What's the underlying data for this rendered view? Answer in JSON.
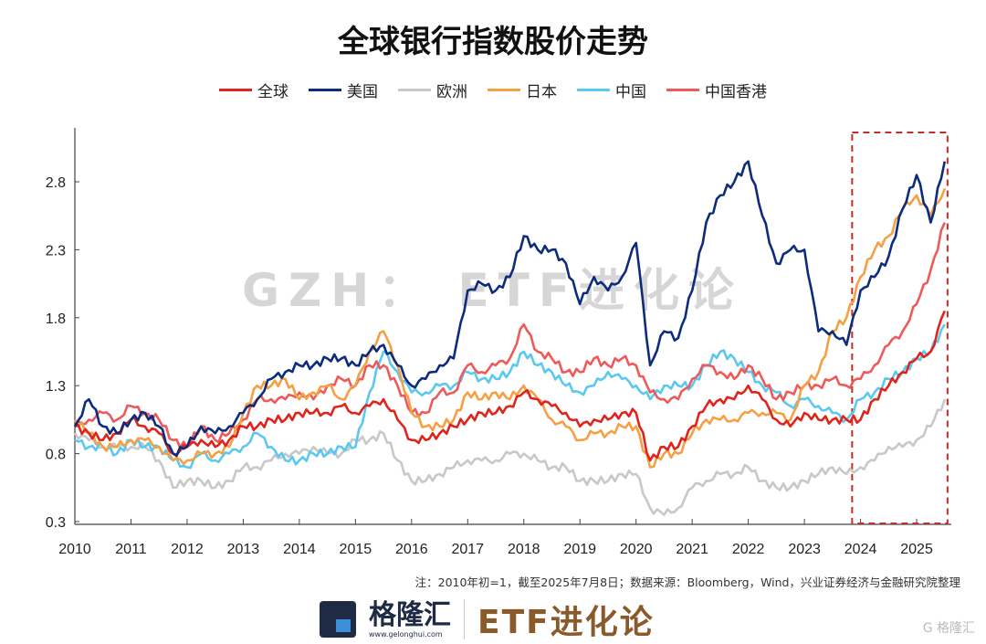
{
  "chart_data": {
    "type": "line",
    "title": "全球银行指数股价走势",
    "xlabel": "",
    "ylabel": "",
    "xlim": [
      2010,
      2025.55
    ],
    "ylim": [
      0.3,
      3.1
    ],
    "yticks": [
      0.3,
      0.8,
      1.3,
      1.8,
      2.3,
      2.8
    ],
    "ytick_labels": [
      "0.3",
      "0.8",
      "1.3",
      "1.8",
      "2.3",
      "2.8"
    ],
    "xtick_labels": [
      "2010",
      "2011",
      "2012",
      "2013",
      "2014",
      "2015",
      "2016",
      "2017",
      "2018",
      "2019",
      "2020",
      "2021",
      "2022",
      "2023",
      "2024",
      "2025"
    ],
    "grid": false,
    "legend_position": "top",
    "highlight_region": {
      "x": [
        2023.85,
        2025.55
      ],
      "style": "red dashed box"
    },
    "x_step_note": "quarterly from 2010.0",
    "series": [
      {
        "name": "全球",
        "color": "#e0231b",
        "values": [
          1.0,
          0.95,
          0.9,
          0.95,
          1.05,
          1.0,
          0.95,
          0.8,
          0.85,
          0.9,
          0.85,
          0.9,
          1.0,
          1.0,
          1.05,
          1.05,
          1.1,
          1.1,
          1.1,
          1.15,
          1.1,
          1.15,
          1.2,
          1.05,
          0.9,
          0.9,
          0.95,
          1.0,
          1.05,
          1.1,
          1.1,
          1.15,
          1.25,
          1.2,
          1.15,
          1.1,
          1.0,
          1.05,
          1.05,
          1.1,
          1.1,
          0.75,
          0.85,
          0.85,
          1.0,
          1.15,
          1.2,
          1.2,
          1.3,
          1.2,
          1.05,
          1.0,
          1.1,
          1.05,
          1.05,
          1.05,
          1.05,
          1.2,
          1.3,
          1.4,
          1.5,
          1.55,
          1.85
        ]
      },
      {
        "name": "美国",
        "color": "#0d2c7c",
        "values": [
          1.0,
          1.2,
          1.0,
          0.95,
          1.05,
          1.1,
          1.0,
          0.8,
          0.85,
          1.0,
          0.95,
          1.0,
          1.1,
          1.2,
          1.35,
          1.4,
          1.45,
          1.45,
          1.5,
          1.5,
          1.45,
          1.55,
          1.6,
          1.45,
          1.3,
          1.35,
          1.45,
          1.5,
          2.0,
          2.05,
          2.0,
          2.1,
          2.4,
          2.3,
          2.3,
          2.2,
          1.9,
          2.1,
          2.0,
          2.1,
          2.35,
          1.45,
          1.7,
          1.65,
          2.0,
          2.5,
          2.7,
          2.8,
          2.95,
          2.55,
          2.2,
          2.3,
          2.3,
          1.7,
          1.7,
          1.6,
          2.0,
          2.1,
          2.25,
          2.6,
          2.85,
          2.5,
          2.95
        ]
      },
      {
        "name": "欧洲",
        "color": "#c8c8c8",
        "values": [
          0.95,
          0.9,
          0.85,
          0.85,
          0.85,
          0.85,
          0.75,
          0.55,
          0.6,
          0.6,
          0.55,
          0.6,
          0.7,
          0.7,
          0.75,
          0.8,
          0.8,
          0.85,
          0.8,
          0.8,
          0.9,
          0.9,
          0.95,
          0.75,
          0.6,
          0.6,
          0.65,
          0.7,
          0.75,
          0.75,
          0.75,
          0.8,
          0.8,
          0.75,
          0.7,
          0.7,
          0.6,
          0.6,
          0.6,
          0.65,
          0.65,
          0.4,
          0.35,
          0.4,
          0.55,
          0.6,
          0.65,
          0.65,
          0.7,
          0.6,
          0.55,
          0.55,
          0.6,
          0.65,
          0.7,
          0.65,
          0.7,
          0.75,
          0.85,
          0.85,
          0.9,
          1.0,
          1.2
        ]
      },
      {
        "name": "日本",
        "color": "#f5a043",
        "values": [
          1.05,
          0.95,
          0.85,
          0.85,
          0.9,
          0.9,
          0.85,
          0.75,
          0.75,
          0.8,
          0.8,
          0.85,
          1.1,
          1.3,
          1.3,
          1.35,
          1.2,
          1.25,
          1.3,
          1.2,
          1.3,
          1.55,
          1.7,
          1.45,
          1.1,
          1.0,
          1.0,
          1.05,
          1.25,
          1.2,
          1.25,
          1.2,
          1.3,
          1.2,
          1.05,
          1.0,
          0.9,
          0.95,
          0.95,
          1.0,
          1.0,
          0.7,
          0.8,
          0.8,
          0.95,
          1.05,
          1.05,
          1.05,
          1.1,
          1.1,
          1.1,
          1.05,
          1.3,
          1.4,
          1.7,
          1.8,
          2.1,
          2.3,
          2.4,
          2.6,
          2.7,
          2.55,
          2.75
        ]
      },
      {
        "name": "中国",
        "color": "#5bc8f0",
        "values": [
          0.9,
          0.85,
          0.85,
          0.8,
          0.9,
          0.85,
          0.85,
          0.75,
          0.7,
          0.8,
          0.75,
          0.8,
          0.85,
          0.95,
          0.85,
          0.75,
          0.75,
          0.8,
          0.8,
          0.85,
          0.85,
          1.25,
          1.55,
          1.4,
          1.25,
          1.25,
          1.3,
          1.3,
          1.4,
          1.35,
          1.35,
          1.4,
          1.55,
          1.45,
          1.4,
          1.3,
          1.25,
          1.3,
          1.4,
          1.35,
          1.3,
          1.2,
          1.3,
          1.3,
          1.3,
          1.45,
          1.55,
          1.5,
          1.4,
          1.3,
          1.25,
          1.15,
          1.2,
          1.15,
          1.1,
          1.05,
          1.2,
          1.25,
          1.35,
          1.4,
          1.5,
          1.55,
          1.75
        ]
      },
      {
        "name": "中国香港",
        "color": "#ee5a5a",
        "values": [
          1.0,
          1.05,
          1.1,
          1.05,
          1.15,
          1.1,
          1.05,
          0.9,
          0.85,
          1.0,
          0.9,
          0.95,
          1.05,
          1.2,
          1.2,
          1.2,
          1.25,
          1.2,
          1.3,
          1.35,
          1.3,
          1.45,
          1.45,
          1.3,
          1.1,
          1.1,
          1.25,
          1.25,
          1.45,
          1.4,
          1.45,
          1.5,
          1.75,
          1.55,
          1.5,
          1.4,
          1.4,
          1.5,
          1.45,
          1.5,
          1.45,
          1.25,
          1.2,
          1.2,
          1.35,
          1.45,
          1.4,
          1.35,
          1.45,
          1.35,
          1.2,
          1.25,
          1.3,
          1.3,
          1.35,
          1.3,
          1.35,
          1.45,
          1.6,
          1.7,
          1.9,
          2.15,
          2.5
        ]
      }
    ]
  },
  "watermark": "GZH： ETF进化论",
  "footnote": "注：2010年初=1，截至2025年7月8日；数据来源：Bloomberg，Wind，兴业证券经济与金融研究院整理",
  "brand": {
    "name": "格隆汇",
    "url": "www.gelonghui.com",
    "account": "ETF进化论",
    "corner": "G 格隆汇"
  }
}
